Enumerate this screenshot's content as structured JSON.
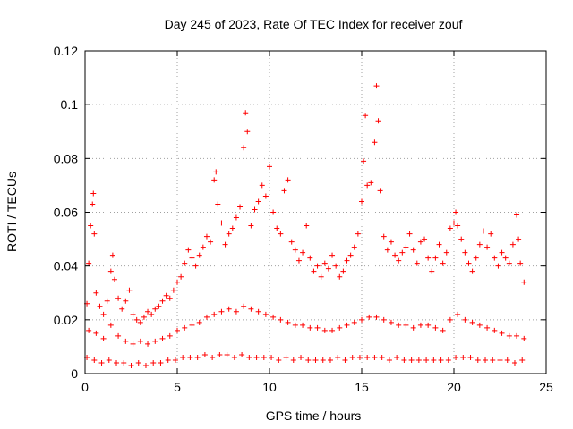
{
  "chart_data": {
    "type": "scatter",
    "title": "Day 245 of 2023, Rate Of TEC Index for receiver zouf",
    "xlabel": "GPS time / hours",
    "ylabel": "ROTI / TECUs",
    "xlim": [
      0,
      25
    ],
    "ylim": [
      0,
      0.12
    ],
    "xticks": [
      0,
      5,
      10,
      15,
      20,
      25
    ],
    "yticks": [
      0,
      0.02,
      0.04,
      0.06,
      0.08,
      0.1,
      0.12
    ],
    "xtick_labels": [
      "0",
      "5",
      "10",
      "15",
      "20",
      "25"
    ],
    "ytick_labels": [
      "0",
      "0.02",
      "0.04",
      "0.06",
      "0.08",
      "0.1",
      "0.12"
    ],
    "grid": true,
    "marker": "+",
    "color": "#ff0000",
    "series": [
      {
        "x": [
          0.1,
          0.2,
          0.3,
          0.4,
          0.45,
          0.5,
          0.6,
          0.8,
          1.0,
          1.2,
          1.4,
          1.5,
          1.6,
          1.8,
          2.0,
          2.2,
          2.4,
          2.6,
          2.8,
          3.0,
          3.2,
          3.4,
          3.6,
          3.8,
          4.0,
          4.2,
          4.4,
          4.6,
          4.8,
          5.0,
          5.2,
          5.4,
          5.6,
          5.8,
          6.0,
          6.2,
          6.4,
          6.6,
          6.8,
          7.0,
          7.1,
          7.2,
          7.4,
          7.6,
          7.8,
          8.0,
          8.2,
          8.4,
          8.6,
          8.7,
          8.8,
          9.0,
          9.2,
          9.4,
          9.6,
          9.8,
          10.0,
          10.2,
          10.4,
          10.6,
          10.8,
          11.0,
          11.2,
          11.4,
          11.6,
          11.8,
          12.0,
          12.2,
          12.4,
          12.6,
          12.8,
          13.0,
          13.2,
          13.4,
          13.6,
          13.8,
          14.0,
          14.2,
          14.4,
          14.6,
          14.8,
          15.0,
          15.1,
          15.2,
          15.3,
          15.5,
          15.7,
          15.8,
          15.9,
          16.0,
          16.2,
          16.4,
          16.6,
          16.8,
          17.0,
          17.2,
          17.4,
          17.6,
          17.8,
          18.0,
          18.2,
          18.4,
          18.6,
          18.8,
          19.0,
          19.2,
          19.4,
          19.6,
          19.8,
          20.0,
          20.1,
          20.2,
          20.4,
          20.6,
          20.8,
          21.0,
          21.2,
          21.4,
          21.6,
          21.8,
          22.0,
          22.2,
          22.4,
          22.6,
          22.8,
          23.0,
          23.2,
          23.4,
          23.5,
          23.6,
          23.8
        ],
        "y": [
          0.026,
          0.041,
          0.055,
          0.063,
          0.067,
          0.052,
          0.03,
          0.025,
          0.022,
          0.027,
          0.038,
          0.044,
          0.035,
          0.028,
          0.024,
          0.027,
          0.031,
          0.022,
          0.02,
          0.019,
          0.021,
          0.023,
          0.022,
          0.024,
          0.025,
          0.027,
          0.029,
          0.028,
          0.031,
          0.034,
          0.036,
          0.041,
          0.046,
          0.043,
          0.04,
          0.044,
          0.047,
          0.051,
          0.049,
          0.072,
          0.075,
          0.063,
          0.056,
          0.048,
          0.052,
          0.054,
          0.058,
          0.062,
          0.084,
          0.097,
          0.09,
          0.055,
          0.061,
          0.064,
          0.07,
          0.066,
          0.077,
          0.06,
          0.054,
          0.052,
          0.068,
          0.072,
          0.049,
          0.046,
          0.042,
          0.045,
          0.055,
          0.043,
          0.038,
          0.04,
          0.036,
          0.041,
          0.039,
          0.044,
          0.04,
          0.036,
          0.038,
          0.042,
          0.044,
          0.047,
          0.052,
          0.064,
          0.079,
          0.096,
          0.07,
          0.071,
          0.086,
          0.107,
          0.094,
          0.068,
          0.051,
          0.046,
          0.049,
          0.044,
          0.042,
          0.045,
          0.047,
          0.052,
          0.046,
          0.041,
          0.049,
          0.05,
          0.043,
          0.038,
          0.043,
          0.048,
          0.041,
          0.045,
          0.054,
          0.056,
          0.06,
          0.055,
          0.05,
          0.045,
          0.041,
          0.038,
          0.043,
          0.048,
          0.053,
          0.047,
          0.052,
          0.043,
          0.04,
          0.045,
          0.043,
          0.041,
          0.048,
          0.059,
          0.05,
          0.041,
          0.034
        ]
      },
      {
        "x": [
          0.2,
          0.6,
          1.0,
          1.4,
          1.8,
          2.2,
          2.6,
          3.0,
          3.4,
          3.8,
          4.2,
          4.6,
          5.0,
          5.4,
          5.8,
          6.2,
          6.6,
          7.0,
          7.4,
          7.8,
          8.2,
          8.6,
          9.0,
          9.4,
          9.8,
          10.2,
          10.6,
          11.0,
          11.4,
          11.8,
          12.2,
          12.6,
          13.0,
          13.4,
          13.8,
          14.2,
          14.6,
          15.0,
          15.4,
          15.8,
          16.2,
          16.6,
          17.0,
          17.4,
          17.8,
          18.2,
          18.6,
          19.0,
          19.4,
          19.8,
          20.2,
          20.6,
          21.0,
          21.4,
          21.8,
          22.2,
          22.6,
          23.0,
          23.4,
          23.8
        ],
        "y": [
          0.016,
          0.015,
          0.013,
          0.018,
          0.014,
          0.012,
          0.011,
          0.012,
          0.011,
          0.012,
          0.013,
          0.014,
          0.016,
          0.017,
          0.018,
          0.019,
          0.021,
          0.022,
          0.023,
          0.024,
          0.023,
          0.025,
          0.024,
          0.023,
          0.022,
          0.021,
          0.02,
          0.019,
          0.018,
          0.018,
          0.017,
          0.017,
          0.016,
          0.016,
          0.017,
          0.018,
          0.019,
          0.02,
          0.021,
          0.021,
          0.02,
          0.019,
          0.018,
          0.018,
          0.017,
          0.018,
          0.018,
          0.017,
          0.016,
          0.02,
          0.022,
          0.02,
          0.019,
          0.018,
          0.017,
          0.016,
          0.015,
          0.014,
          0.014,
          0.013
        ]
      },
      {
        "x": [
          0.1,
          0.5,
          0.9,
          1.3,
          1.7,
          2.1,
          2.5,
          2.9,
          3.3,
          3.7,
          4.1,
          4.5,
          4.9,
          5.3,
          5.7,
          6.1,
          6.5,
          6.9,
          7.3,
          7.7,
          8.1,
          8.5,
          8.9,
          9.3,
          9.7,
          10.1,
          10.5,
          10.9,
          11.3,
          11.7,
          12.1,
          12.5,
          12.9,
          13.3,
          13.7,
          14.1,
          14.5,
          14.9,
          15.3,
          15.7,
          16.1,
          16.5,
          16.9,
          17.3,
          17.7,
          18.1,
          18.5,
          18.9,
          19.3,
          19.7,
          20.1,
          20.5,
          20.9,
          21.3,
          21.7,
          22.1,
          22.5,
          22.9,
          23.3,
          23.7
        ],
        "y": [
          0.006,
          0.005,
          0.004,
          0.005,
          0.004,
          0.004,
          0.003,
          0.004,
          0.003,
          0.004,
          0.004,
          0.005,
          0.005,
          0.006,
          0.006,
          0.006,
          0.007,
          0.006,
          0.007,
          0.007,
          0.006,
          0.007,
          0.006,
          0.006,
          0.006,
          0.006,
          0.005,
          0.006,
          0.005,
          0.006,
          0.005,
          0.005,
          0.005,
          0.005,
          0.006,
          0.005,
          0.006,
          0.006,
          0.006,
          0.006,
          0.006,
          0.005,
          0.006,
          0.005,
          0.005,
          0.005,
          0.005,
          0.005,
          0.005,
          0.005,
          0.006,
          0.006,
          0.006,
          0.005,
          0.005,
          0.005,
          0.005,
          0.005,
          0.004,
          0.005
        ]
      }
    ]
  }
}
